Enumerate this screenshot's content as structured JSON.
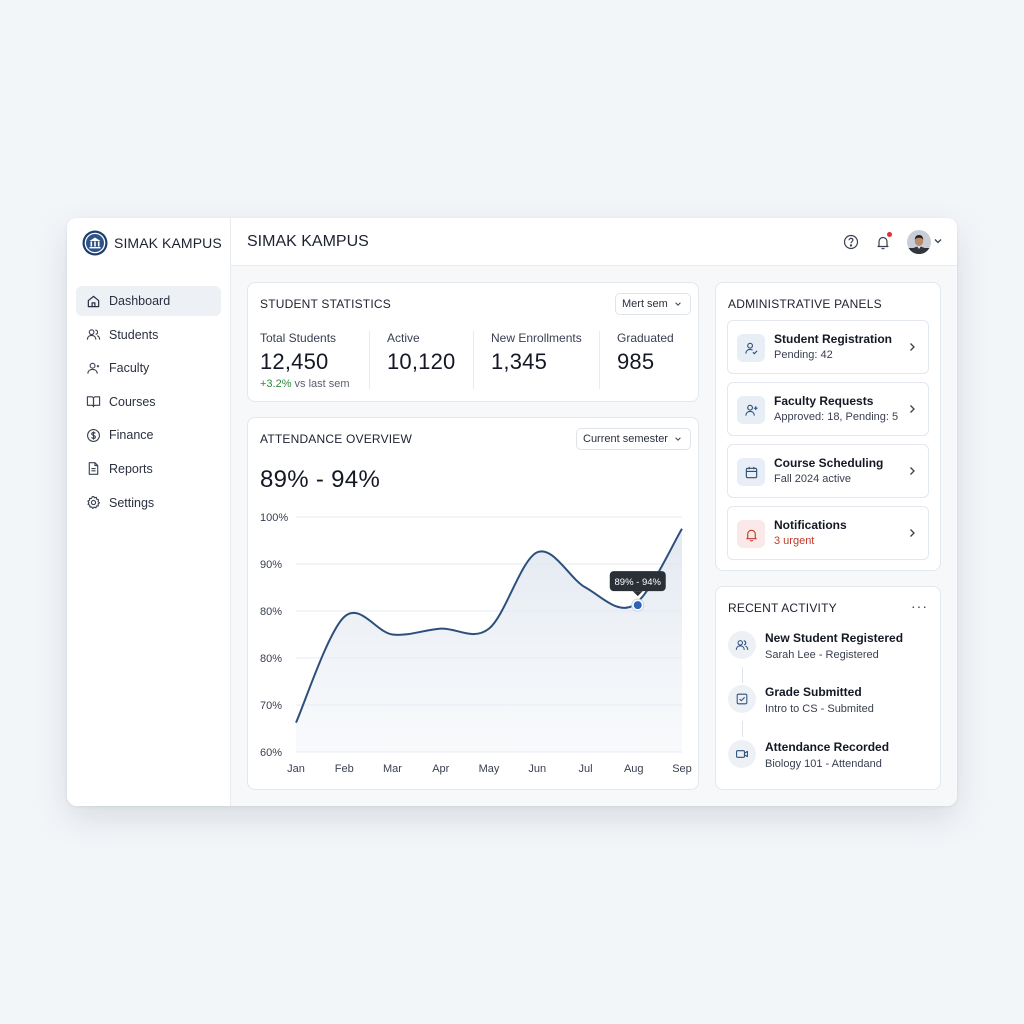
{
  "app": {
    "brand_name": "SIMAK KAMPUS",
    "page_title": "SIMAK KAMPUS"
  },
  "sidebar": {
    "items": [
      {
        "label": "Dashboard",
        "icon": "home-icon",
        "active": true
      },
      {
        "label": "Students",
        "icon": "users-icon"
      },
      {
        "label": "Faculty",
        "icon": "faculty-icon"
      },
      {
        "label": "Courses",
        "icon": "book-icon"
      },
      {
        "label": "Finance",
        "icon": "dollar-icon"
      },
      {
        "label": "Reports",
        "icon": "document-icon"
      },
      {
        "label": "Settings",
        "icon": "gear-icon"
      }
    ]
  },
  "topbar": {
    "icons": [
      "help-icon",
      "bell-icon",
      "avatar",
      "chevron-down-icon"
    ]
  },
  "student_stats": {
    "title": "STUDENT STATISTICS",
    "select_value": "Mert sem",
    "stats": [
      {
        "label": "Total Students",
        "value": "12,450",
        "delta_pos": "+3.2%",
        "delta_rest": " vs last sem"
      },
      {
        "label": "Active",
        "value": "10,120"
      },
      {
        "label": "New Enrollments",
        "value": "1,345"
      },
      {
        "label": "Graduated",
        "value": "985"
      }
    ]
  },
  "attendance": {
    "title": "ATTENDANCE OVERVIEW",
    "select_value": "Current semester",
    "range": "89% - 94%",
    "tooltip": "89% - 94%"
  },
  "chart_data": {
    "type": "line",
    "title": "ATTENDANCE OVERVIEW",
    "categories": [
      "Jan",
      "Feb",
      "Mar",
      "Apr",
      "May",
      "Jun",
      "Jul",
      "Aug",
      "Sep"
    ],
    "y_tick_labels": [
      "100%",
      "90%",
      "80%",
      "80%",
      "70%",
      "60%"
    ],
    "ylim": [
      60,
      100
    ],
    "grid": true,
    "series": [
      {
        "values": [
          65,
          83,
          80,
          81,
          81,
          94,
          88,
          85,
          98
        ]
      }
    ],
    "highlight": {
      "category": "Aug",
      "label": "89% - 94%"
    }
  },
  "admin": {
    "title": "ADMINISTRATIVE PANELS",
    "items": [
      {
        "title": "Student Registration",
        "sub": "Pending: 42",
        "icon": "user-check-icon"
      },
      {
        "title": "Faculty Requests",
        "sub": "Approved: 18, Pending: 5",
        "icon": "user-add-icon"
      },
      {
        "title": "Course Scheduling",
        "sub": "Fall 2024 active",
        "icon": "calendar-icon"
      },
      {
        "title": "Notifications",
        "sub": "3 urgent",
        "icon": "bell-icon",
        "alert_color": "#c03a2b"
      }
    ]
  },
  "activity": {
    "title": "RECENT ACTIVITY",
    "more": "···",
    "items": [
      {
        "title": "New Student Registered",
        "sub": "Sarah Lee - Registered",
        "icon": "users-icon"
      },
      {
        "title": "Grade Submitted",
        "sub": "Intro to CS - Submited",
        "icon": "checklist-icon"
      },
      {
        "title": "Attendance Recorded",
        "sub": "Biology 101 - Attendand",
        "icon": "video-icon"
      }
    ]
  },
  "colors": {
    "accent": "#2d4f7c",
    "point": "#2f63b5",
    "positive": "#2e8a3e",
    "alert": "#c03a2b"
  }
}
